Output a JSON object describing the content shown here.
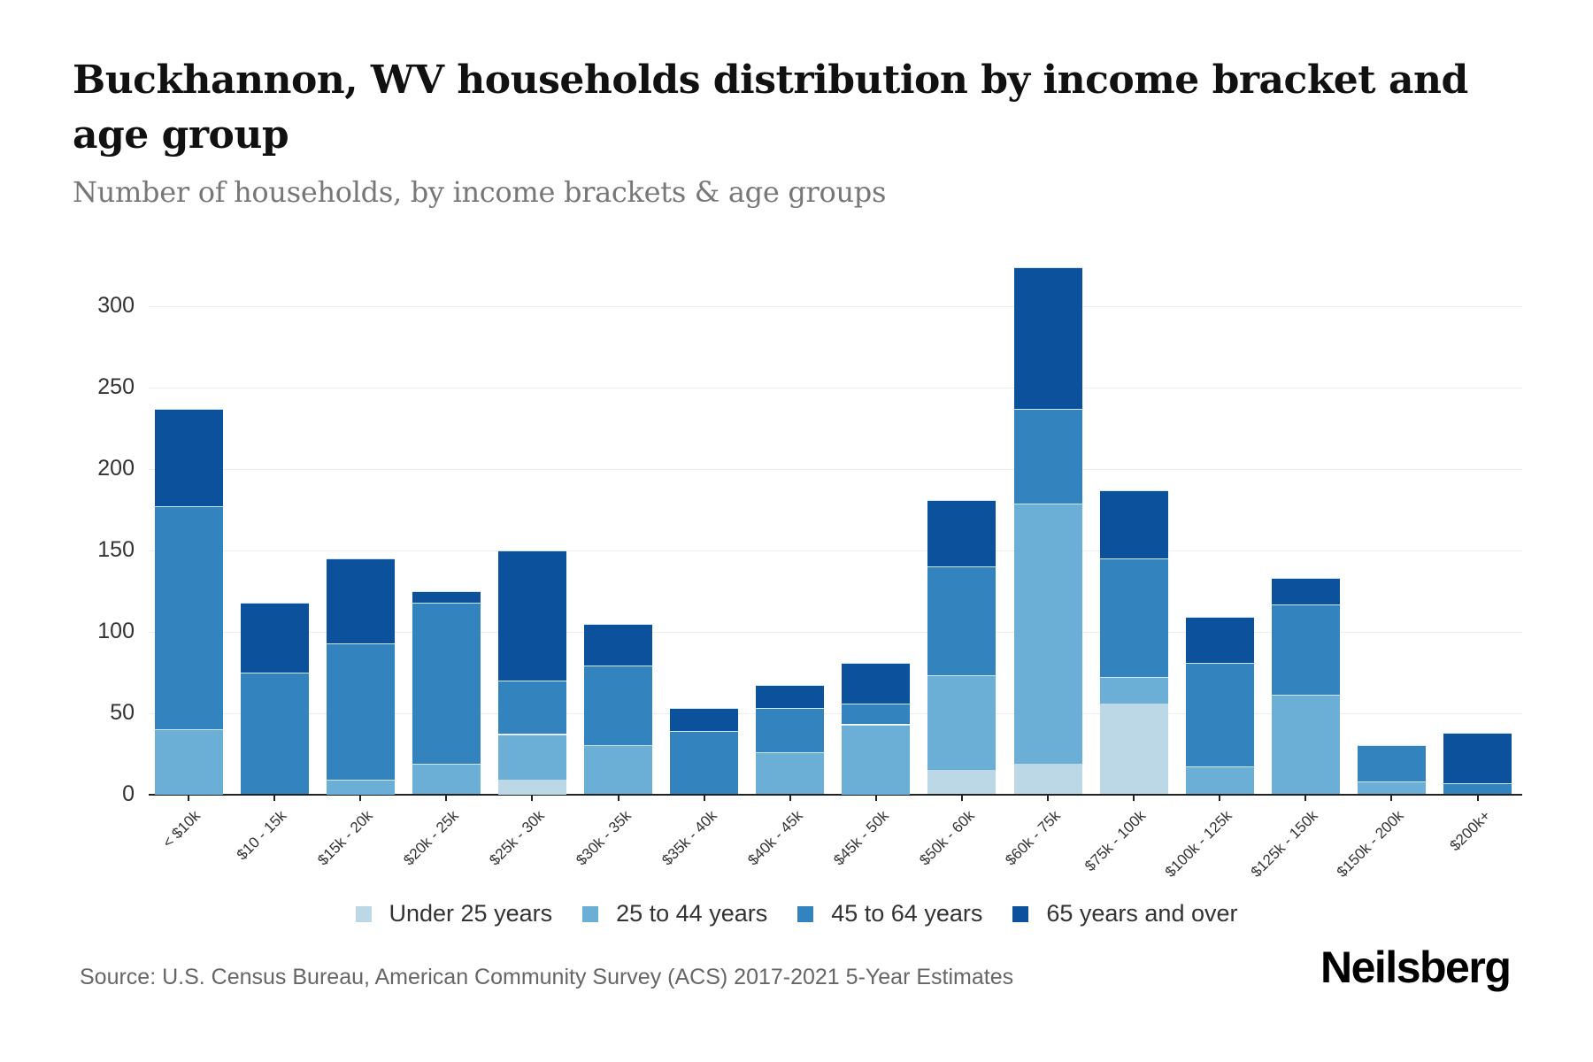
{
  "header": {
    "title": "Buckhannon, WV households distribution by income bracket and age group",
    "subtitle": "Number of households, by income brackets & age groups"
  },
  "footer": {
    "source": "Source: U.S. Census Bureau, American Community Survey (ACS) 2017-2021 5-Year Estimates",
    "brand": "Neilsberg"
  },
  "colors": {
    "under_25": "#bcd7e6",
    "age_25_44": "#6baed6",
    "age_45_64": "#3383be",
    "age_65_plus": "#0b519c"
  },
  "legend": [
    {
      "label": "Under 25 years",
      "color": "#bcd7e6"
    },
    {
      "label": "25 to 44 years",
      "color": "#6baed6"
    },
    {
      "label": "45 to 64 years",
      "color": "#3383be"
    },
    {
      "label": "65 years and over",
      "color": "#0b519c"
    }
  ],
  "chart_data": {
    "type": "bar",
    "stacked": true,
    "title": "Buckhannon, WV households distribution by income bracket and age group",
    "subtitle": "Number of households, by income brackets & age groups",
    "xlabel": "",
    "ylabel": "",
    "ylim": [
      0,
      330
    ],
    "yticks": [
      0,
      50,
      100,
      150,
      200,
      250,
      300
    ],
    "grid": true,
    "legend_position": "bottom",
    "categories": [
      "< $10k",
      "$10 - 15k",
      "$15k - 20k",
      "$20k - 25k",
      "$25k - 30k",
      "$30k - 35k",
      "$35k - 40k",
      "$40k - 45k",
      "$45k - 50k",
      "$50k - 60k",
      "$60k - 75k",
      "$75k - 100k",
      "$100k - 125k",
      "$125k - 150k",
      "$150k - 200k",
      "$200k+"
    ],
    "series": [
      {
        "name": "Under 25 years",
        "color": "#bcd7e6",
        "values": [
          0,
          0,
          0,
          0,
          9,
          0,
          0,
          0,
          0,
          15,
          19,
          56,
          0,
          0,
          0,
          0
        ]
      },
      {
        "name": "25 to 44 years",
        "color": "#6baed6",
        "values": [
          40,
          0,
          9,
          19,
          28,
          30,
          0,
          26,
          43,
          58,
          160,
          16,
          17,
          61,
          8,
          0
        ]
      },
      {
        "name": "45 to 64 years",
        "color": "#3383be",
        "values": [
          137,
          75,
          84,
          99,
          33,
          49,
          39,
          27,
          13,
          67,
          58,
          73,
          64,
          56,
          22,
          7
        ]
      },
      {
        "name": "65 years and over",
        "color": "#0b519c",
        "values": [
          60,
          43,
          52,
          7,
          80,
          26,
          14,
          14,
          25,
          41,
          87,
          42,
          28,
          16,
          0,
          31
        ]
      }
    ],
    "totals": [
      237,
      118,
      145,
      125,
      150,
      105,
      53,
      67,
      81,
      181,
      324,
      187,
      109,
      133,
      30,
      38
    ]
  }
}
